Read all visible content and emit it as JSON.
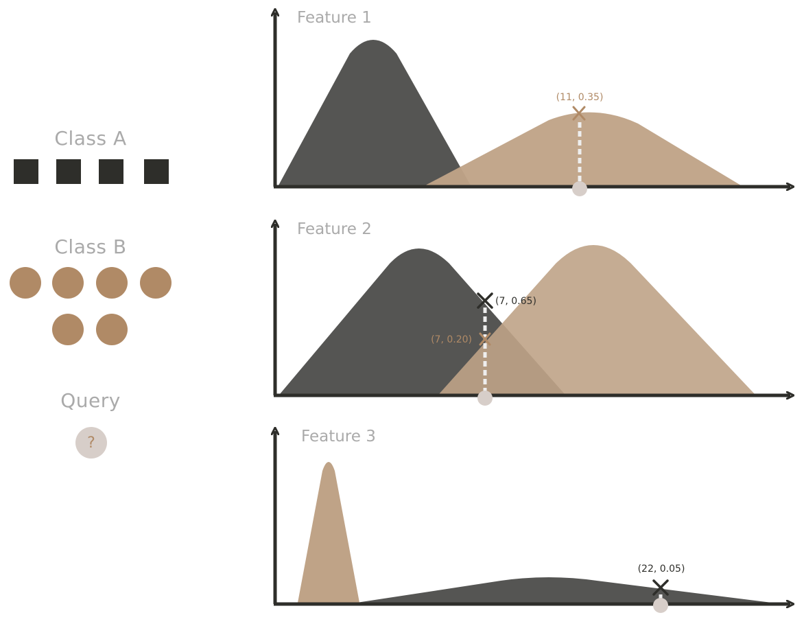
{
  "colors": {
    "class_a": "#2e2e2a",
    "class_a_curve": "#555553",
    "class_b": "#b08a66",
    "class_b_curve": "#bfa387",
    "query": "#d7cec9",
    "label_gray": "#aaaaaa",
    "axis": "#2e2e2a"
  },
  "legend": {
    "class_a": {
      "label": "Class A",
      "count": 4,
      "shape": "square"
    },
    "class_b": {
      "label": "Class B",
      "count": 6,
      "shape": "circle"
    },
    "query": {
      "label": "Query",
      "symbol": "?"
    }
  },
  "features": [
    {
      "title": "Feature 1",
      "markers": [
        {
          "text": "(11, 0.35)",
          "x": 11,
          "y": 0.35,
          "color": "class_b"
        }
      ]
    },
    {
      "title": "Feature 2",
      "markers": [
        {
          "text": "(7, 0.65)",
          "x": 7,
          "y": 0.65,
          "color": "class_a"
        },
        {
          "text": "(7, 0.20)",
          "x": 7,
          "y": 0.2,
          "color": "class_b"
        }
      ]
    },
    {
      "title": "Feature 3",
      "markers": [
        {
          "text": "(22, 0.05)",
          "x": 22,
          "y": 0.05,
          "color": "class_a"
        }
      ]
    }
  ]
}
